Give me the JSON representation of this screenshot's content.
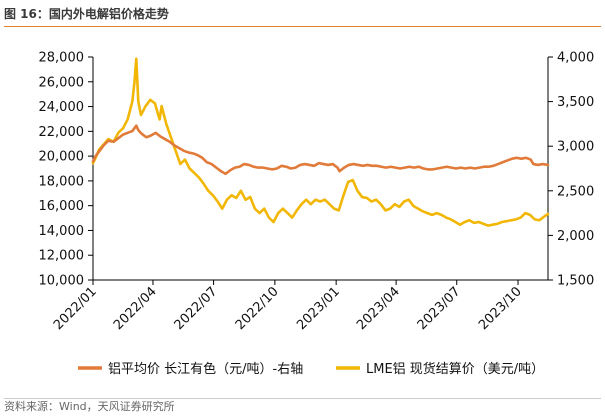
{
  "figure": {
    "title": "图 16：国内外电解铝价格走势",
    "source": "资料来源：Wind，天风证券研究所"
  },
  "colors": {
    "series_orange": "#E07B39",
    "series_yellow": "#F2B705",
    "axis": "#000000"
  },
  "chart_data": {
    "type": "line",
    "xlabel": "",
    "ylabel": "",
    "x_ticks": [
      "2022/01",
      "2022/04",
      "2022/07",
      "2022/10",
      "2023/01",
      "2023/04",
      "2023/07",
      "2023/10"
    ],
    "x_range": [
      "2022-01-01",
      "2023-11-15"
    ],
    "y_left": {
      "ylim": [
        10000,
        28000
      ],
      "ticks": [
        "10,000",
        "12,000",
        "14,000",
        "16,000",
        "18,000",
        "20,000",
        "22,000",
        "24,000",
        "26,000",
        "28,000"
      ]
    },
    "y_right": {
      "ylim": [
        1500,
        4000
      ],
      "ticks": [
        "1,500",
        "2,000",
        "2,500",
        "3,000",
        "3,500",
        "4,000"
      ]
    },
    "grid": false,
    "legend_position": "bottom",
    "series": [
      {
        "name": "铝平均价 长江有色（元/吨）-右轴",
        "axis": "right",
        "color": "#E07B39",
        "points": [
          [
            "2022-01-01",
            2830
          ],
          [
            "2022-01-05",
            2890
          ],
          [
            "2022-01-10",
            2940
          ],
          [
            "2022-01-17",
            3010
          ],
          [
            "2022-01-24",
            3060
          ],
          [
            "2022-02-01",
            3050
          ],
          [
            "2022-02-08",
            3090
          ],
          [
            "2022-02-15",
            3130
          ],
          [
            "2022-02-22",
            3150
          ],
          [
            "2022-03-01",
            3170
          ],
          [
            "2022-03-07",
            3230
          ],
          [
            "2022-03-10",
            3180
          ],
          [
            "2022-03-15",
            3140
          ],
          [
            "2022-03-22",
            3100
          ],
          [
            "2022-03-29",
            3120
          ],
          [
            "2022-04-05",
            3150
          ],
          [
            "2022-04-12",
            3110
          ],
          [
            "2022-04-19",
            3080
          ],
          [
            "2022-04-26",
            3050
          ],
          [
            "2022-05-03",
            3010
          ],
          [
            "2022-05-10",
            2980
          ],
          [
            "2022-05-17",
            2950
          ],
          [
            "2022-05-24",
            2930
          ],
          [
            "2022-05-31",
            2920
          ],
          [
            "2022-06-07",
            2900
          ],
          [
            "2022-06-14",
            2870
          ],
          [
            "2022-06-21",
            2820
          ],
          [
            "2022-06-28",
            2800
          ],
          [
            "2022-07-05",
            2760
          ],
          [
            "2022-07-12",
            2720
          ],
          [
            "2022-07-19",
            2690
          ],
          [
            "2022-07-26",
            2730
          ],
          [
            "2022-08-02",
            2760
          ],
          [
            "2022-08-09",
            2770
          ],
          [
            "2022-08-16",
            2800
          ],
          [
            "2022-08-23",
            2790
          ],
          [
            "2022-08-30",
            2770
          ],
          [
            "2022-09-06",
            2760
          ],
          [
            "2022-09-13",
            2760
          ],
          [
            "2022-09-20",
            2750
          ],
          [
            "2022-09-27",
            2740
          ],
          [
            "2022-10-04",
            2750
          ],
          [
            "2022-10-11",
            2780
          ],
          [
            "2022-10-18",
            2770
          ],
          [
            "2022-10-25",
            2750
          ],
          [
            "2022-11-01",
            2760
          ],
          [
            "2022-11-08",
            2790
          ],
          [
            "2022-11-15",
            2800
          ],
          [
            "2022-11-22",
            2790
          ],
          [
            "2022-11-29",
            2780
          ],
          [
            "2022-12-06",
            2810
          ],
          [
            "2022-12-13",
            2800
          ],
          [
            "2022-12-20",
            2790
          ],
          [
            "2022-12-27",
            2800
          ],
          [
            "2023-01-03",
            2760
          ],
          [
            "2023-01-06",
            2720
          ],
          [
            "2023-01-13",
            2760
          ],
          [
            "2023-01-20",
            2790
          ],
          [
            "2023-01-27",
            2800
          ],
          [
            "2023-02-03",
            2790
          ],
          [
            "2023-02-10",
            2780
          ],
          [
            "2023-02-17",
            2790
          ],
          [
            "2023-02-24",
            2780
          ],
          [
            "2023-03-03",
            2780
          ],
          [
            "2023-03-10",
            2770
          ],
          [
            "2023-03-17",
            2760
          ],
          [
            "2023-03-24",
            2770
          ],
          [
            "2023-03-31",
            2760
          ],
          [
            "2023-04-07",
            2750
          ],
          [
            "2023-04-14",
            2760
          ],
          [
            "2023-04-21",
            2770
          ],
          [
            "2023-04-28",
            2760
          ],
          [
            "2023-05-05",
            2770
          ],
          [
            "2023-05-12",
            2750
          ],
          [
            "2023-05-19",
            2740
          ],
          [
            "2023-05-26",
            2740
          ],
          [
            "2023-06-02",
            2750
          ],
          [
            "2023-06-09",
            2760
          ],
          [
            "2023-06-16",
            2770
          ],
          [
            "2023-06-23",
            2760
          ],
          [
            "2023-06-30",
            2750
          ],
          [
            "2023-07-07",
            2760
          ],
          [
            "2023-07-14",
            2750
          ],
          [
            "2023-07-21",
            2760
          ],
          [
            "2023-07-28",
            2750
          ],
          [
            "2023-08-04",
            2760
          ],
          [
            "2023-08-11",
            2770
          ],
          [
            "2023-08-18",
            2770
          ],
          [
            "2023-08-25",
            2780
          ],
          [
            "2023-09-01",
            2800
          ],
          [
            "2023-09-08",
            2820
          ],
          [
            "2023-09-15",
            2840
          ],
          [
            "2023-09-22",
            2860
          ],
          [
            "2023-09-29",
            2870
          ],
          [
            "2023-10-06",
            2860
          ],
          [
            "2023-10-13",
            2870
          ],
          [
            "2023-10-20",
            2850
          ],
          [
            "2023-10-24",
            2800
          ],
          [
            "2023-10-31",
            2790
          ],
          [
            "2023-11-07",
            2800
          ],
          [
            "2023-11-15",
            2790
          ]
        ]
      },
      {
        "name": "LME铝 现货结算价（美元/吨）",
        "axis": "right",
        "color": "#F2B705",
        "points": [
          [
            "2022-01-01",
            2810
          ],
          [
            "2022-01-05",
            2870
          ],
          [
            "2022-01-10",
            2960
          ],
          [
            "2022-01-17",
            3020
          ],
          [
            "2022-01-24",
            3080
          ],
          [
            "2022-02-01",
            3050
          ],
          [
            "2022-02-08",
            3150
          ],
          [
            "2022-02-15",
            3200
          ],
          [
            "2022-02-22",
            3300
          ],
          [
            "2022-03-01",
            3500
          ],
          [
            "2022-03-04",
            3700
          ],
          [
            "2022-03-07",
            3980
          ],
          [
            "2022-03-10",
            3500
          ],
          [
            "2022-03-14",
            3350
          ],
          [
            "2022-03-21",
            3450
          ],
          [
            "2022-03-28",
            3520
          ],
          [
            "2022-04-04",
            3480
          ],
          [
            "2022-04-11",
            3300
          ],
          [
            "2022-04-14",
            3450
          ],
          [
            "2022-04-21",
            3250
          ],
          [
            "2022-04-28",
            3100
          ],
          [
            "2022-05-05",
            2950
          ],
          [
            "2022-05-12",
            2800
          ],
          [
            "2022-05-19",
            2850
          ],
          [
            "2022-05-26",
            2750
          ],
          [
            "2022-06-02",
            2700
          ],
          [
            "2022-06-09",
            2650
          ],
          [
            "2022-06-16",
            2580
          ],
          [
            "2022-06-23",
            2500
          ],
          [
            "2022-06-30",
            2450
          ],
          [
            "2022-07-07",
            2380
          ],
          [
            "2022-07-14",
            2300
          ],
          [
            "2022-07-21",
            2400
          ],
          [
            "2022-07-28",
            2450
          ],
          [
            "2022-08-04",
            2420
          ],
          [
            "2022-08-11",
            2500
          ],
          [
            "2022-08-18",
            2400
          ],
          [
            "2022-08-25",
            2430
          ],
          [
            "2022-09-01",
            2300
          ],
          [
            "2022-09-08",
            2250
          ],
          [
            "2022-09-15",
            2300
          ],
          [
            "2022-09-22",
            2200
          ],
          [
            "2022-09-29",
            2150
          ],
          [
            "2022-10-06",
            2250
          ],
          [
            "2022-10-13",
            2300
          ],
          [
            "2022-10-20",
            2250
          ],
          [
            "2022-10-27",
            2200
          ],
          [
            "2022-11-03",
            2280
          ],
          [
            "2022-11-10",
            2350
          ],
          [
            "2022-11-17",
            2400
          ],
          [
            "2022-11-24",
            2350
          ],
          [
            "2022-12-01",
            2400
          ],
          [
            "2022-12-08",
            2380
          ],
          [
            "2022-12-15",
            2400
          ],
          [
            "2022-12-22",
            2350
          ],
          [
            "2022-12-29",
            2300
          ],
          [
            "2023-01-05",
            2280
          ],
          [
            "2023-01-12",
            2450
          ],
          [
            "2023-01-19",
            2600
          ],
          [
            "2023-01-26",
            2620
          ],
          [
            "2023-02-02",
            2500
          ],
          [
            "2023-02-09",
            2430
          ],
          [
            "2023-02-16",
            2420
          ],
          [
            "2023-02-23",
            2380
          ],
          [
            "2023-03-02",
            2400
          ],
          [
            "2023-03-09",
            2350
          ],
          [
            "2023-03-16",
            2280
          ],
          [
            "2023-03-23",
            2300
          ],
          [
            "2023-03-30",
            2350
          ],
          [
            "2023-04-06",
            2320
          ],
          [
            "2023-04-13",
            2380
          ],
          [
            "2023-04-20",
            2400
          ],
          [
            "2023-04-27",
            2330
          ],
          [
            "2023-05-04",
            2300
          ],
          [
            "2023-05-11",
            2270
          ],
          [
            "2023-05-18",
            2250
          ],
          [
            "2023-05-25",
            2230
          ],
          [
            "2023-06-01",
            2250
          ],
          [
            "2023-06-08",
            2230
          ],
          [
            "2023-06-15",
            2200
          ],
          [
            "2023-06-22",
            2180
          ],
          [
            "2023-06-29",
            2150
          ],
          [
            "2023-07-06",
            2120
          ],
          [
            "2023-07-13",
            2150
          ],
          [
            "2023-07-20",
            2170
          ],
          [
            "2023-07-27",
            2140
          ],
          [
            "2023-08-03",
            2150
          ],
          [
            "2023-08-10",
            2130
          ],
          [
            "2023-08-17",
            2110
          ],
          [
            "2023-08-24",
            2120
          ],
          [
            "2023-08-31",
            2130
          ],
          [
            "2023-09-07",
            2150
          ],
          [
            "2023-09-14",
            2160
          ],
          [
            "2023-09-21",
            2170
          ],
          [
            "2023-09-28",
            2180
          ],
          [
            "2023-10-05",
            2200
          ],
          [
            "2023-10-12",
            2250
          ],
          [
            "2023-10-19",
            2230
          ],
          [
            "2023-10-26",
            2180
          ],
          [
            "2023-11-02",
            2170
          ],
          [
            "2023-11-09",
            2210
          ],
          [
            "2023-11-15",
            2240
          ]
        ]
      }
    ]
  }
}
